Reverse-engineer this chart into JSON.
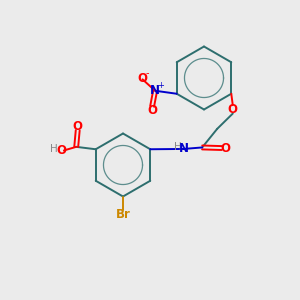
{
  "bg_color": "#ebebeb",
  "bond_color": "#2d6e6e",
  "atom_colors": {
    "O": "#ff0000",
    "N": "#0000cc",
    "Br": "#cc8800",
    "H": "#888888"
  },
  "lw": 1.4,
  "fs": 8.5,
  "fs_small": 7.5
}
